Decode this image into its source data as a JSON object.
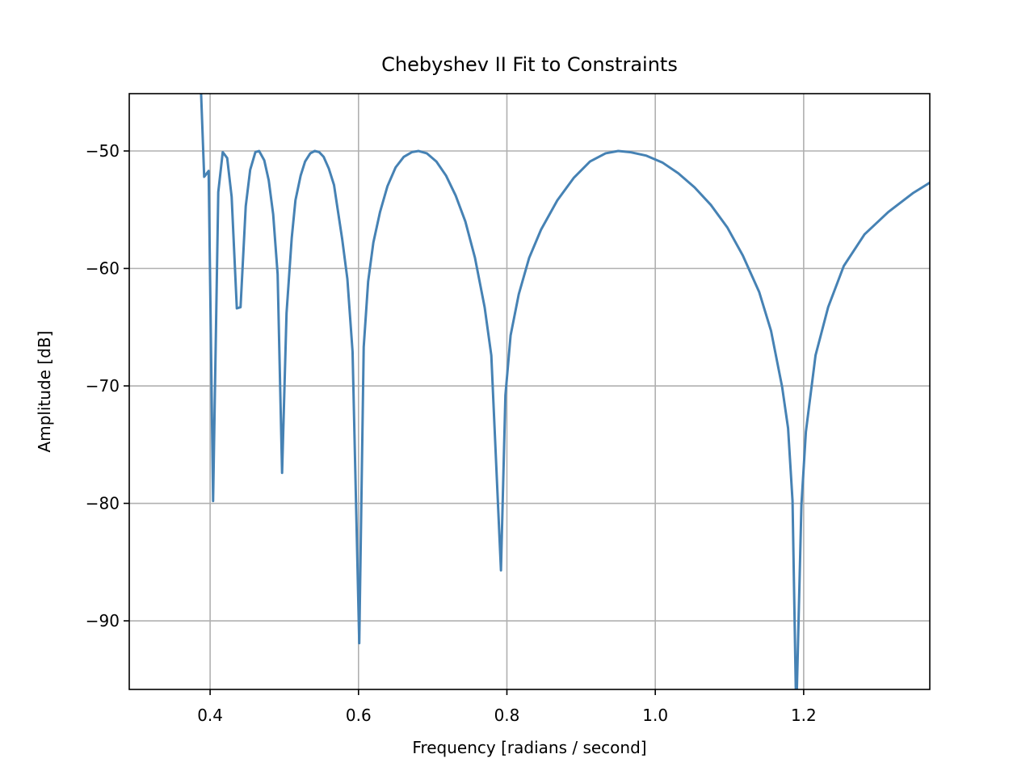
{
  "chart_data": {
    "type": "line",
    "title": "Chebyshev II Fit to Constraints",
    "xlabel": "Frequency [radians / second]",
    "ylabel": "Amplitude [dB]",
    "xlim": [
      0.291,
      1.37
    ],
    "ylim": [
      -95.84,
      -45.12
    ],
    "xticks": [
      0.4,
      0.6,
      0.8,
      {
        "value": 1.0,
        "label": "1.0"
      },
      1.2
    ],
    "yticks": [
      {
        "value": -90,
        "label": "−90"
      },
      {
        "value": -80,
        "label": "−80"
      },
      {
        "value": -70,
        "label": "−70"
      },
      {
        "value": -60,
        "label": "−60"
      },
      {
        "value": -50,
        "label": "−50"
      }
    ],
    "grid": true,
    "series": [
      {
        "color": "#4682b4",
        "x": [
          0.386,
          0.392,
          0.398,
          0.404,
          0.411,
          0.417,
          0.423,
          0.429,
          0.436,
          0.441,
          0.448,
          0.454,
          0.461,
          0.466,
          0.473,
          0.479,
          0.485,
          0.491,
          0.497,
          0.503,
          0.51,
          0.515,
          0.522,
          0.528,
          0.535,
          0.541,
          0.547,
          0.553,
          0.56,
          0.567,
          0.572,
          0.578,
          0.585,
          0.592,
          0.601,
          0.607,
          0.613,
          0.62,
          0.629,
          0.639,
          0.65,
          0.661,
          0.672,
          0.681,
          0.692,
          0.705,
          0.718,
          0.731,
          0.744,
          0.757,
          0.77,
          0.779,
          0.792,
          0.798,
          0.805,
          0.816,
          0.83,
          0.846,
          0.868,
          0.89,
          0.912,
          0.933,
          0.95,
          0.966,
          0.988,
          1.01,
          1.031,
          1.053,
          1.075,
          1.097,
          1.118,
          1.14,
          1.156,
          1.171,
          1.179,
          1.185,
          1.19,
          1.197,
          1.203,
          1.216,
          1.233,
          1.254,
          1.282,
          1.314,
          1.347,
          1.37
        ],
        "values": [
          -42,
          -52.2,
          -51.7,
          -79.8,
          -53.5,
          -50.1,
          -50.6,
          -53.9,
          -63.4,
          -63.3,
          -54.7,
          -51.6,
          -50.1,
          -50.0,
          -50.8,
          -52.5,
          -55.4,
          -60.5,
          -77.4,
          -63.8,
          -57.4,
          -54.2,
          -52.1,
          -50.9,
          -50.2,
          -50.0,
          -50.1,
          -50.5,
          -51.5,
          -52.9,
          -55.0,
          -57.5,
          -60.9,
          -67.1,
          -91.9,
          -66.7,
          -61.1,
          -57.8,
          -55.2,
          -53.0,
          -51.4,
          -50.5,
          -50.1,
          -50.0,
          -50.2,
          -50.9,
          -52.1,
          -53.8,
          -56.0,
          -59.1,
          -63.3,
          -67.4,
          -85.7,
          -70.8,
          -65.7,
          -62.2,
          -59.1,
          -56.7,
          -54.2,
          -52.3,
          -50.9,
          -50.2,
          -50.0,
          -50.1,
          -50.4,
          -51.0,
          -51.9,
          -53.1,
          -54.6,
          -56.5,
          -58.9,
          -62.0,
          -65.3,
          -70.1,
          -73.6,
          -79.8,
          -98,
          -80.1,
          -73.9,
          -67.4,
          -63.3,
          -59.8,
          -57.1,
          -55.2,
          -53.6,
          -52.7
        ]
      }
    ]
  }
}
